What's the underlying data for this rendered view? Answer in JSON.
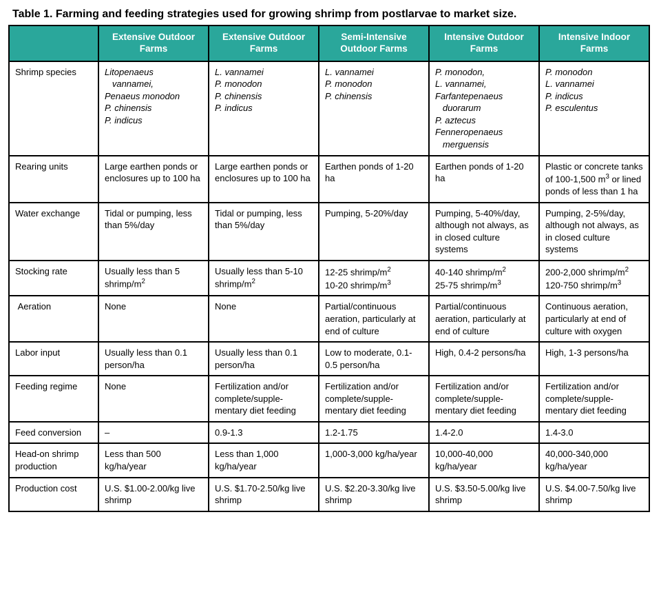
{
  "title": "Table 1. Farming and feeding strategies used for growing shrimp from postlarvae to market size.",
  "header_bg": "#2aa79b",
  "header_fg": "#ffffff",
  "border_color": "#000000",
  "columns": [
    "",
    "Extensive Outdoor Farms",
    "Extensive Outdoor Farms",
    "Semi-Intensive Outdoor Farms",
    "Intensive Outdoor Farms",
    "Intensive Indoor Farms"
  ],
  "row_labels": [
    "Shrimp species",
    "Rearing units",
    "Water exchange",
    "Stocking rate",
    "Aeration",
    "Labor input",
    "Feeding regime",
    "Feed conversion",
    "Head-on shrimp production",
    "Production cost"
  ],
  "cells": {
    "species": [
      "<i>Litopenaeus</i><br>&nbsp;&nbsp;&nbsp;<i>vannamei,</i><br><i>Penaeus monodon</i><br><i>P. chinensis</i><br><i>P. indicus</i>",
      "<i>L. vannamei</i><br><i>P. monodon</i><br><i>P. chinensis</i><br><i>P. indicus</i>",
      "<i>L. vannamei</i><br><i>P. monodon</i><br><i>P. chinensis</i>",
      "<i>P. monodon,</i><br><i>L. vannamei,</i><br><i>Farfantepenaeus</i><br>&nbsp;&nbsp;&nbsp;<i>duorarum</i><br><i>P. aztecus</i><br><i>Fenneropenaeus</i><br>&nbsp;&nbsp;&nbsp;<i>merguensis</i>",
      "<i>P. monodon</i><br><i>L. vannamei</i><br><i>P. indicus</i><br><i>P. esculentus</i>"
    ],
    "rearing": [
      "Large earthen ponds or enclosures up to 100 ha",
      "Large earthen ponds or enclosures up to 100 ha",
      "Earthen ponds of 1-20 ha",
      "Earthen ponds of 1-20 ha",
      "Plastic or concrete tanks of 100-1,500 m<sup>3</sup> or lined ponds of less than 1 ha"
    ],
    "water": [
      "Tidal or pumping, less than 5%/day",
      "Tidal or pumping, less than 5%/day",
      "Pumping, 5-20%/day",
      "Pumping, 5-40%/day, although not always, as in closed culture systems",
      "Pumping, 2-5%/day, although not always, as in closed culture systems"
    ],
    "stocking": [
      "Usually less than 5 shrimp/m<sup>2</sup>",
      "Usually less than 5-10 shrimp/m<sup>2</sup>",
      "12-25 shrimp/m<sup>2</sup><br>10-20 shrimp/m<sup>3</sup>",
      "40-140 shrimp/m<sup>2</sup><br>25-75 shrimp/m<sup>3</sup>",
      "200-2,000 shrimp/m<sup>2</sup><br>120-750 shrimp/m<sup>3</sup>"
    ],
    "aeration": [
      "None",
      "None",
      "Partial/continuous aeration, particularly at end of culture",
      "Partial/continuous aeration, particularly at end of culture",
      "Continuous aeration, particularly at end of culture with oxygen"
    ],
    "labor": [
      "Usually less than 0.1 person/ha",
      "Usually less than 0.1 person/ha",
      "Low to moderate, 0.1-0.5 person/ha",
      "High, 0.4-2 persons/ha",
      "High, 1-3 persons/ha"
    ],
    "feeding": [
      "None",
      "Fertilization and/or complete/supple-mentary diet feeding",
      "Fertilization and/or complete/supple-mentary diet feeding",
      "Fertilization and/or complete/supple-mentary diet feeding",
      "Fertilization and/or complete/supple-mentary diet feeding"
    ],
    "conversion": [
      "–",
      "0.9-1.3",
      "1.2-1.75",
      "1.4-2.0",
      "1.4-3.0"
    ],
    "production": [
      "Less than 500 kg/ha/year",
      "Less than 1,000 kg/ha/year",
      "1,000-3,000 kg/ha/year",
      "10,000-40,000 kg/ha/year",
      "40,000-340,000 kg/ha/year"
    ],
    "cost": [
      "U.S. $1.00-2.00/kg live shrimp",
      "U.S. $1.70-2.50/kg live shrimp",
      "U.S. $2.20-3.30/kg live shrimp",
      "U.S. $3.50-5.00/kg live shrimp",
      "U.S. $4.00-7.50/kg live shrimp"
    ]
  }
}
